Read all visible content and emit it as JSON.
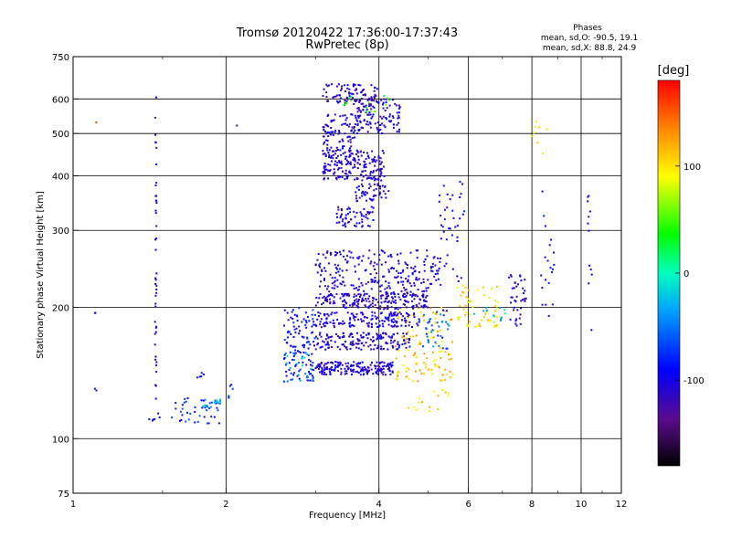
{
  "chart_data": {
    "type": "scatter",
    "title": "Tromsø 20120422 17:36:00-17:37:43",
    "subtitle": "RwPretec (8p)",
    "xlabel": "Frequency [MHz]",
    "ylabel": "Stationary phase Virtual Height [km]",
    "x_scale": "log",
    "y_scale": "log",
    "xlim": [
      1,
      12
    ],
    "ylim": [
      75,
      750
    ],
    "x_ticks": [
      1,
      2,
      4,
      6,
      8,
      10,
      12
    ],
    "x_tick_labels": [
      "1",
      "2",
      "4",
      "6",
      "8",
      "10",
      "12"
    ],
    "x_grid": [
      2,
      4,
      6,
      8,
      10
    ],
    "y_ticks": [
      75,
      100,
      200,
      300,
      400,
      500,
      600,
      750
    ],
    "y_tick_labels": [
      "75",
      "100",
      "200",
      "300",
      "400",
      "500",
      "600",
      "750"
    ],
    "y_grid": [
      100,
      200,
      300,
      400,
      500,
      600
    ],
    "grid": true,
    "phases_box": {
      "heading": "Phases",
      "line1": "mean, sd,O: -90.5, 19.1",
      "line2": "mean, sd,X:  88.8, 24.9"
    },
    "colorbar": {
      "label": "[deg]",
      "range": [
        -180,
        180
      ],
      "tick_values": [
        100,
        0,
        -100
      ],
      "tick_labels": [
        "100",
        "0",
        "-100"
      ]
    },
    "clusters": [
      {
        "x": [
          1.45,
          1.46
        ],
        "y": [
          105,
          610
        ],
        "phase": -110,
        "n": 45
      },
      {
        "x": [
          1.1,
          1.12
        ],
        "y": [
          190,
          196
        ],
        "phase": -110,
        "n": 2
      },
      {
        "x": [
          1.1,
          1.13
        ],
        "y": [
          128,
          132
        ],
        "phase": -110,
        "n": 2
      },
      {
        "x": [
          1.09,
          1.12
        ],
        "y": [
          525,
          535
        ],
        "phase": 140,
        "n": 1
      },
      {
        "x": [
          1.4,
          1.5
        ],
        "y": [
          110,
          116
        ],
        "phase": -100,
        "n": 6
      },
      {
        "x": [
          1.55,
          1.95
        ],
        "y": [
          108,
          124
        ],
        "phase": -80,
        "n": 40
      },
      {
        "x": [
          1.8,
          1.95
        ],
        "y": [
          118,
          124
        ],
        "phase": -40,
        "n": 20
      },
      {
        "x": [
          1.75,
          1.85
        ],
        "y": [
          138,
          142
        ],
        "phase": -100,
        "n": 5
      },
      {
        "x": [
          2.02,
          2.08
        ],
        "y": [
          122,
          134
        ],
        "phase": -60,
        "n": 5
      },
      {
        "x": [
          2.1,
          2.2
        ],
        "y": [
          520,
          530
        ],
        "phase": -110,
        "n": 1
      },
      {
        "x": [
          2.6,
          3.0
        ],
        "y": [
          135,
          200
        ],
        "phase": -90,
        "n": 120
      },
      {
        "x": [
          2.6,
          3.0
        ],
        "y": [
          135,
          160
        ],
        "phase": -30,
        "n": 25
      },
      {
        "x": [
          3.0,
          4.3
        ],
        "y": [
          140,
          150
        ],
        "phase": -110,
        "n": 180
      },
      {
        "x": [
          3.0,
          4.6
        ],
        "y": [
          160,
          175
        ],
        "phase": -110,
        "n": 160
      },
      {
        "x": [
          3.0,
          4.8
        ],
        "y": [
          180,
          195
        ],
        "phase": -110,
        "n": 160
      },
      {
        "x": [
          3.0,
          5.0
        ],
        "y": [
          198,
          215
        ],
        "phase": -115,
        "n": 200
      },
      {
        "x": [
          3.0,
          5.3
        ],
        "y": [
          215,
          270
        ],
        "phase": -110,
        "n": 240
      },
      {
        "x": [
          4.3,
          5.6
        ],
        "y": [
          135,
          200
        ],
        "phase": 110,
        "n": 110
      },
      {
        "x": [
          4.8,
          5.5
        ],
        "y": [
          160,
          200
        ],
        "phase": -60,
        "n": 40
      },
      {
        "x": [
          3.3,
          3.9
        ],
        "y": [
          305,
          340
        ],
        "phase": -110,
        "n": 60
      },
      {
        "x": [
          3.6,
          4.2
        ],
        "y": [
          350,
          385
        ],
        "phase": -110,
        "n": 50
      },
      {
        "x": [
          3.1,
          4.1
        ],
        "y": [
          390,
          460
        ],
        "phase": -115,
        "n": 200
      },
      {
        "x": [
          3.1,
          3.6
        ],
        "y": [
          460,
          560
        ],
        "phase": -110,
        "n": 80
      },
      {
        "x": [
          3.6,
          4.4
        ],
        "y": [
          500,
          600
        ],
        "phase": -110,
        "n": 120
      },
      {
        "x": [
          3.1,
          4.0
        ],
        "y": [
          580,
          650
        ],
        "phase": -120,
        "n": 90
      },
      {
        "x": [
          3.4,
          4.3
        ],
        "y": [
          560,
          610
        ],
        "phase": 40,
        "n": 15
      },
      {
        "x": [
          5.7,
          6.9
        ],
        "y": [
          180,
          225
        ],
        "phase": 100,
        "n": 60
      },
      {
        "x": [
          6.1,
          7.1
        ],
        "y": [
          185,
          200
        ],
        "phase": -20,
        "n": 12
      },
      {
        "x": [
          7.2,
          7.8
        ],
        "y": [
          180,
          240
        ],
        "phase": -110,
        "n": 40
      },
      {
        "x": [
          8.3,
          8.9
        ],
        "y": [
          190,
          400
        ],
        "phase": -100,
        "n": 20
      },
      {
        "x": [
          10.3,
          10.5
        ],
        "y": [
          175,
          380
        ],
        "phase": -110,
        "n": 12
      },
      {
        "x": [
          5.2,
          5.9
        ],
        "y": [
          220,
          390
        ],
        "phase": -100,
        "n": 40
      },
      {
        "x": [
          4.5,
          5.5
        ],
        "y": [
          115,
          135
        ],
        "phase": 100,
        "n": 15
      },
      {
        "x": [
          8.0,
          8.6
        ],
        "y": [
          450,
          600
        ],
        "phase": 90,
        "n": 8
      }
    ]
  }
}
